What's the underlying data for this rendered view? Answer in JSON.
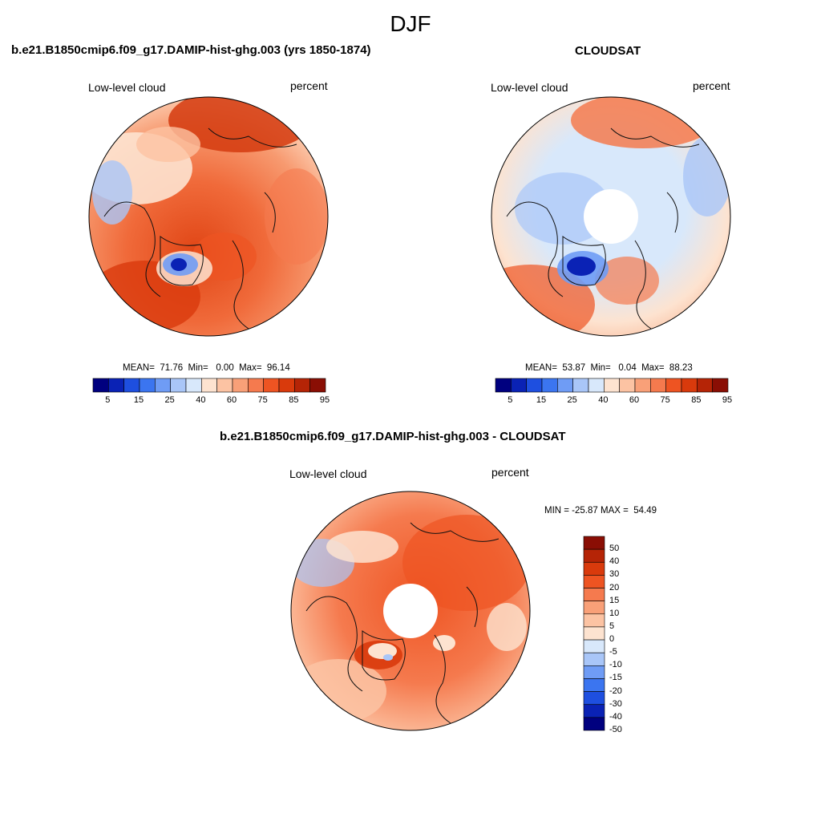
{
  "figure": {
    "title": "DJF"
  },
  "panels": {
    "model": {
      "title": "b.e21.B1850cmip6.f09_g17.DAMIP-hist-ghg.003 (yrs 1850-1874)",
      "variable": "Low-level cloud",
      "units": "percent",
      "stats": "MEAN=  71.76  Min=   0.00  Max=  96.14"
    },
    "obs": {
      "title": "CLOUDSAT",
      "variable": "Low-level cloud",
      "units": "percent",
      "stats": "MEAN=  53.87  Min=   0.04  Max=  88.23"
    },
    "diff": {
      "title": "b.e21.B1850cmip6.f09_g17.DAMIP-hist-ghg.003 - CLOUDSAT",
      "variable": "Low-level cloud",
      "units": "percent",
      "stats": "MIN = -25.87 MAX =  54.49"
    }
  },
  "chart_data": [
    {
      "type": "heatmap",
      "projection": "north polar stereographic",
      "title": "b.e21.B1850cmip6.f09_g17.DAMIP-hist-ghg.003 (yrs 1850-1874)",
      "variable": "Low-level cloud",
      "units": "percent",
      "mean": 71.76,
      "min": 0.0,
      "max": 96.14,
      "colorbar_ticks": [
        "5",
        "15",
        "25",
        "40",
        "60",
        "75",
        "85",
        "95"
      ],
      "colorbar_colors": [
        "#00007f",
        "#0a22b5",
        "#1e4fe0",
        "#3b75f0",
        "#6f9cf5",
        "#a9c6f8",
        "#d8e8fb",
        "#fde3d0",
        "#fcc3a3",
        "#f9a078",
        "#f57a4e",
        "#ee5422",
        "#d93a0c",
        "#b52406",
        "#8a0e04"
      ]
    },
    {
      "type": "heatmap",
      "projection": "north polar stereographic",
      "title": "CLOUDSAT",
      "variable": "Low-level cloud",
      "units": "percent",
      "mean": 53.87,
      "min": 0.04,
      "max": 88.23,
      "colorbar_ticks": [
        "5",
        "15",
        "25",
        "40",
        "60",
        "75",
        "85",
        "95"
      ],
      "colorbar_colors": [
        "#00007f",
        "#0a22b5",
        "#1e4fe0",
        "#3b75f0",
        "#6f9cf5",
        "#a9c6f8",
        "#d8e8fb",
        "#fde3d0",
        "#fcc3a3",
        "#f9a078",
        "#f57a4e",
        "#ee5422",
        "#d93a0c",
        "#b52406",
        "#8a0e04"
      ]
    },
    {
      "type": "heatmap",
      "projection": "north polar stereographic",
      "title": "b.e21.B1850cmip6.f09_g17.DAMIP-hist-ghg.003 - CLOUDSAT",
      "variable": "Low-level cloud",
      "units": "percent",
      "min": -25.87,
      "max": 54.49,
      "colorbar_ticks": [
        "50",
        "40",
        "30",
        "20",
        "15",
        "10",
        "5",
        "0",
        "-5",
        "-10",
        "-15",
        "-20",
        "-30",
        "-40",
        "-50"
      ],
      "colorbar_colors": [
        "#8a0e04",
        "#b52406",
        "#d93a0c",
        "#ee5422",
        "#f57a4e",
        "#f9a078",
        "#fcc3a3",
        "#fde3d0",
        "#d8e8fb",
        "#a9c6f8",
        "#6f9cf5",
        "#3b75f0",
        "#1e4fe0",
        "#0a22b5",
        "#00007f"
      ]
    }
  ]
}
